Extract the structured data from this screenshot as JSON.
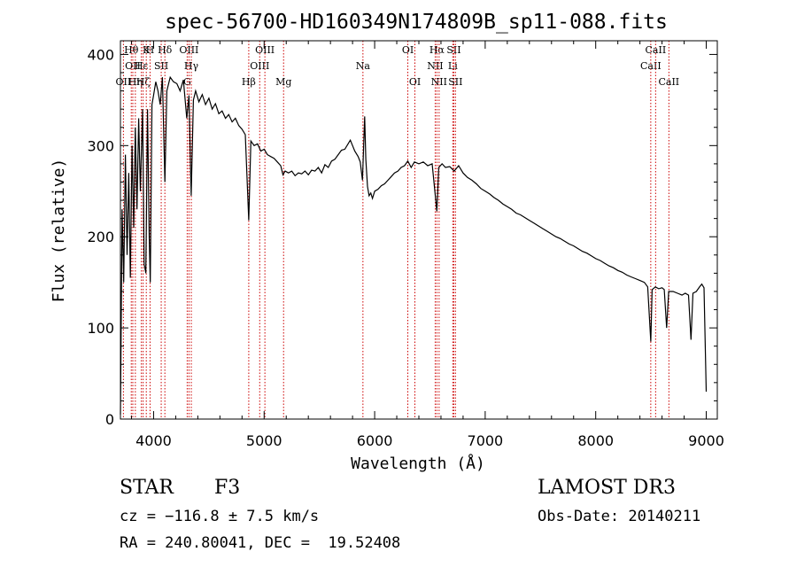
{
  "chart_data": {
    "type": "line",
    "title": "spec-56700-HD160349N174809B_sp11-088.fits",
    "xlabel": "Wavelength (Å)",
    "ylabel": "Flux (relative)",
    "xlim": [
      3700,
      9100
    ],
    "ylim": [
      0,
      415
    ],
    "xticks": [
      4000,
      5000,
      6000,
      7000,
      8000,
      9000
    ],
    "yticks": [
      0,
      100,
      200,
      300,
      400
    ],
    "grid": false,
    "series_color": "#000000",
    "line_color": "#cc0000",
    "spectrum": [
      [
        3700,
        5
      ],
      [
        3715,
        230
      ],
      [
        3730,
        150
      ],
      [
        3745,
        290
      ],
      [
        3760,
        180
      ],
      [
        3775,
        270
      ],
      [
        3790,
        155
      ],
      [
        3805,
        300
      ],
      [
        3820,
        210
      ],
      [
        3835,
        320
      ],
      [
        3850,
        230
      ],
      [
        3865,
        330
      ],
      [
        3880,
        250
      ],
      [
        3900,
        340
      ],
      [
        3915,
        170
      ],
      [
        3930,
        160
      ],
      [
        3945,
        340
      ],
      [
        3960,
        200
      ],
      [
        3970,
        150
      ],
      [
        3985,
        345
      ],
      [
        4000,
        355
      ],
      [
        4020,
        370
      ],
      [
        4040,
        360
      ],
      [
        4060,
        345
      ],
      [
        4080,
        375
      ],
      [
        4102,
        260
      ],
      [
        4120,
        360
      ],
      [
        4150,
        375
      ],
      [
        4180,
        370
      ],
      [
        4210,
        368
      ],
      [
        4240,
        360
      ],
      [
        4270,
        372
      ],
      [
        4300,
        330
      ],
      [
        4320,
        355
      ],
      [
        4340,
        245
      ],
      [
        4360,
        350
      ],
      [
        4380,
        360
      ],
      [
        4410,
        348
      ],
      [
        4440,
        356
      ],
      [
        4470,
        345
      ],
      [
        4500,
        352
      ],
      [
        4530,
        340
      ],
      [
        4560,
        346
      ],
      [
        4590,
        335
      ],
      [
        4620,
        338
      ],
      [
        4650,
        330
      ],
      [
        4680,
        334
      ],
      [
        4710,
        326
      ],
      [
        4740,
        330
      ],
      [
        4770,
        322
      ],
      [
        4800,
        318
      ],
      [
        4830,
        312
      ],
      [
        4861,
        218
      ],
      [
        4880,
        305
      ],
      [
        4910,
        300
      ],
      [
        4940,
        302
      ],
      [
        4970,
        294
      ],
      [
        5000,
        296
      ],
      [
        5030,
        290
      ],
      [
        5060,
        288
      ],
      [
        5090,
        286
      ],
      [
        5120,
        282
      ],
      [
        5150,
        278
      ],
      [
        5170,
        268
      ],
      [
        5190,
        272
      ],
      [
        5220,
        270
      ],
      [
        5250,
        272
      ],
      [
        5280,
        267
      ],
      [
        5310,
        270
      ],
      [
        5340,
        269
      ],
      [
        5370,
        272
      ],
      [
        5400,
        268
      ],
      [
        5430,
        273
      ],
      [
        5460,
        272
      ],
      [
        5490,
        276
      ],
      [
        5520,
        270
      ],
      [
        5550,
        279
      ],
      [
        5580,
        276
      ],
      [
        5610,
        283
      ],
      [
        5640,
        285
      ],
      [
        5670,
        290
      ],
      [
        5700,
        295
      ],
      [
        5730,
        296
      ],
      [
        5760,
        302
      ],
      [
        5780,
        306
      ],
      [
        5800,
        300
      ],
      [
        5820,
        294
      ],
      [
        5850,
        288
      ],
      [
        5870,
        282
      ],
      [
        5890,
        262
      ],
      [
        5900,
        298
      ],
      [
        5910,
        332
      ],
      [
        5920,
        285
      ],
      [
        5935,
        255
      ],
      [
        5950,
        245
      ],
      [
        5965,
        248
      ],
      [
        5980,
        242
      ],
      [
        6000,
        250
      ],
      [
        6030,
        252
      ],
      [
        6060,
        256
      ],
      [
        6090,
        258
      ],
      [
        6120,
        262
      ],
      [
        6150,
        266
      ],
      [
        6180,
        270
      ],
      [
        6210,
        272
      ],
      [
        6240,
        276
      ],
      [
        6270,
        278
      ],
      [
        6300,
        283
      ],
      [
        6330,
        276
      ],
      [
        6360,
        282
      ],
      [
        6400,
        280
      ],
      [
        6440,
        282
      ],
      [
        6480,
        278
      ],
      [
        6520,
        280
      ],
      [
        6563,
        228
      ],
      [
        6580,
        276
      ],
      [
        6610,
        280
      ],
      [
        6640,
        276
      ],
      [
        6680,
        277
      ],
      [
        6720,
        272
      ],
      [
        6760,
        278
      ],
      [
        6800,
        270
      ],
      [
        6840,
        265
      ],
      [
        6880,
        262
      ],
      [
        6920,
        258
      ],
      [
        6960,
        253
      ],
      [
        7000,
        250
      ],
      [
        7040,
        247
      ],
      [
        7080,
        243
      ],
      [
        7120,
        240
      ],
      [
        7160,
        236
      ],
      [
        7200,
        233
      ],
      [
        7240,
        230
      ],
      [
        7280,
        226
      ],
      [
        7320,
        224
      ],
      [
        7360,
        221
      ],
      [
        7400,
        218
      ],
      [
        7440,
        215
      ],
      [
        7480,
        212
      ],
      [
        7520,
        209
      ],
      [
        7560,
        206
      ],
      [
        7600,
        203
      ],
      [
        7640,
        200
      ],
      [
        7680,
        198
      ],
      [
        7720,
        195
      ],
      [
        7760,
        192
      ],
      [
        7800,
        190
      ],
      [
        7840,
        187
      ],
      [
        7880,
        184
      ],
      [
        7920,
        182
      ],
      [
        7960,
        179
      ],
      [
        8000,
        176
      ],
      [
        8040,
        174
      ],
      [
        8080,
        171
      ],
      [
        8120,
        168
      ],
      [
        8160,
        166
      ],
      [
        8200,
        163
      ],
      [
        8240,
        161
      ],
      [
        8280,
        158
      ],
      [
        8320,
        156
      ],
      [
        8360,
        154
      ],
      [
        8400,
        152
      ],
      [
        8440,
        150
      ],
      [
        8470,
        145
      ],
      [
        8498,
        85
      ],
      [
        8510,
        142
      ],
      [
        8540,
        145
      ],
      [
        8570,
        143
      ],
      [
        8600,
        144
      ],
      [
        8620,
        142
      ],
      [
        8642,
        100
      ],
      [
        8660,
        140
      ],
      [
        8700,
        140
      ],
      [
        8740,
        138
      ],
      [
        8780,
        136
      ],
      [
        8810,
        138
      ],
      [
        8840,
        136
      ],
      [
        8862,
        87
      ],
      [
        8880,
        138
      ],
      [
        8910,
        140
      ],
      [
        8940,
        145
      ],
      [
        8960,
        148
      ],
      [
        8980,
        144
      ],
      [
        9000,
        30
      ]
    ],
    "lines": [
      {
        "name": "OII",
        "x": 3727,
        "row": 3
      },
      {
        "name": "Hθ",
        "x": 3798,
        "row": 1
      },
      {
        "name": "OII",
        "x": 3812,
        "row": 2
      },
      {
        "name": "Hη",
        "x": 3835,
        "row": 3
      },
      {
        "name": "Hε",
        "x": 3889,
        "row": 2
      },
      {
        "name": "Hζ",
        "x": 3905,
        "row": 3
      },
      {
        "name": "K",
        "x": 3934,
        "row": 1
      },
      {
        "name": "H",
        "x": 3968,
        "row": 1
      },
      {
        "name": "SII",
        "x": 4069,
        "row": 2
      },
      {
        "name": "Hδ",
        "x": 4102,
        "row": 1
      },
      {
        "name": "G",
        "x": 4304,
        "row": 3
      },
      {
        "name": "OIII",
        "x": 4320,
        "row": 1
      },
      {
        "name": "Hγ",
        "x": 4341,
        "row": 2
      },
      {
        "name": "Hβ",
        "x": 4861,
        "row": 3
      },
      {
        "name": "OIII",
        "x": 4960,
        "row": 2
      },
      {
        "name": "OIII",
        "x": 5007,
        "row": 1
      },
      {
        "name": "Mg",
        "x": 5176,
        "row": 3
      },
      {
        "name": "Na",
        "x": 5894,
        "row": 2
      },
      {
        "name": "OI",
        "x": 6300,
        "row": 1
      },
      {
        "name": "OI",
        "x": 6364,
        "row": 3
      },
      {
        "name": "NII",
        "x": 6548,
        "row": 2
      },
      {
        "name": "Hα",
        "x": 6563,
        "row": 1
      },
      {
        "name": "NII",
        "x": 6583,
        "row": 3
      },
      {
        "name": "Li",
        "x": 6707,
        "row": 2
      },
      {
        "name": "SII",
        "x": 6716,
        "row": 1
      },
      {
        "name": "SII",
        "x": 6731,
        "row": 3
      },
      {
        "name": "CaII",
        "x": 8498,
        "row": 2
      },
      {
        "name": "CaII",
        "x": 8542,
        "row": 1
      },
      {
        "name": "CaII",
        "x": 8662,
        "row": 3
      }
    ]
  },
  "footer": {
    "class_label": "STAR",
    "subclass": "F3",
    "survey": "LAMOST DR3",
    "redshift": "cz = −116.8 ± 7.5 km/s",
    "obs_date": "Obs-Date: 20140211",
    "coords": "RA = 240.80041, DEC =  19.52408"
  }
}
